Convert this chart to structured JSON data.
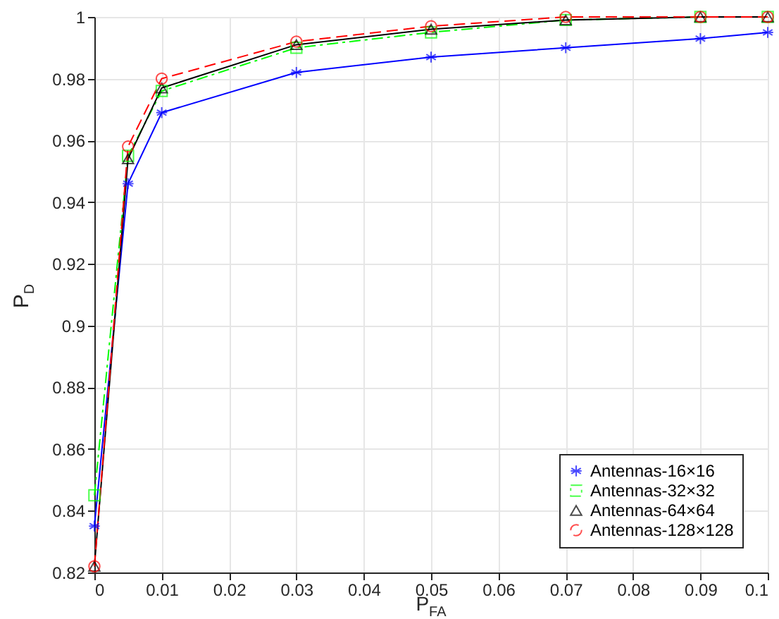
{
  "chart_data": {
    "type": "line",
    "xlabel": "P$_{FA}$",
    "ylabel": "P$_{D}$",
    "x": [
      0,
      0.005,
      0.01,
      0.03,
      0.05,
      0.07,
      0.09,
      0.1
    ],
    "series": [
      {
        "name": "Antennas-16×16",
        "color": "#0000ff",
        "marker": "cross",
        "line_style": "solid",
        "values": [
          0.835,
          0.946,
          0.969,
          0.982,
          0.987,
          0.99,
          0.993,
          0.995
        ]
      },
      {
        "name": "Antennas-32×32",
        "color": "#00ff00",
        "marker": "square",
        "line_style": "dashdot",
        "values": [
          0.845,
          0.955,
          0.976,
          0.99,
          0.995,
          0.999,
          1.0,
          1.0
        ]
      },
      {
        "name": "Antennas-64×64",
        "color": "#000000",
        "marker": "triangle",
        "line_style": "solid",
        "values": [
          0.822,
          0.954,
          0.977,
          0.991,
          0.996,
          0.999,
          1.0,
          1.0
        ]
      },
      {
        "name": "Antennas-128×128",
        "color": "#ff0000",
        "marker": "circle",
        "line_style": "dashed",
        "values": [
          0.822,
          0.958,
          0.98,
          0.992,
          0.997,
          1.0,
          1.0,
          1.0
        ]
      }
    ],
    "xlim": [
      0,
      0.1
    ],
    "xticks": [
      0,
      0.01,
      0.02,
      0.03,
      0.04,
      0.05,
      0.06,
      0.07,
      0.08,
      0.09,
      0.1
    ],
    "ylim": [
      0.82,
      1
    ],
    "yticks": [
      0.82,
      0.84,
      0.86,
      0.88,
      0.9,
      0.92,
      0.94,
      0.96,
      0.98,
      1
    ],
    "grid": true,
    "legend": "bottom right"
  }
}
